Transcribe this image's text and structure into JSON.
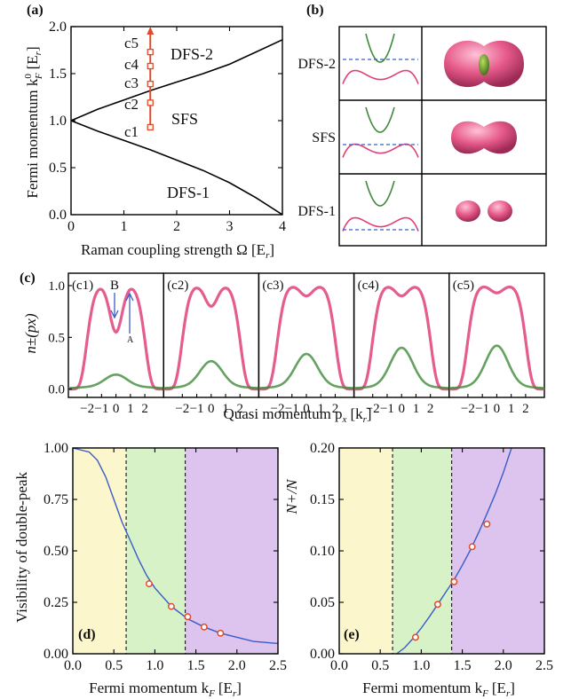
{
  "colors": {
    "magenta": "#e0407a",
    "green": "#3f8a3a",
    "red_marker": "#e04a2a",
    "fit_line": "#3b5bc8",
    "dash_blue": "#3060d0",
    "yellow_region": "#fbf6cc",
    "green_region": "#d6f2c6",
    "purple_region": "#dcc4ef",
    "arrow_blue": "#3b5bc8"
  },
  "panel_a": {
    "label": "(a)",
    "ylabel": "Fermi momentum k",
    "ylabel_super": "0",
    "ylabel_sub": "F",
    "ylabel_unit": "[E",
    "ylabel_unit_sub": "r",
    "ylabel_unit_end": "]",
    "xlabel": "Raman coupling strength Ω [E",
    "xlabel_sub": "r",
    "xlabel_end": "]",
    "region_labels": [
      "DFS-2",
      "SFS",
      "DFS-1"
    ],
    "marker_labels": [
      "c1",
      "c2",
      "c3",
      "c4",
      "c5"
    ],
    "icons": [
      "vertical-red-arrow-icon"
    ]
  },
  "panel_b": {
    "label": "(b)",
    "row_labels": [
      "DFS-2",
      "SFS",
      "DFS-1"
    ],
    "icons": [
      "band-dispersion-icon",
      "fermi-surface-blob-icon"
    ]
  },
  "panel_c": {
    "label": "(c)",
    "subpanels": [
      "(c1)",
      "(c2)",
      "(c3)",
      "(c4)",
      "(c5)"
    ],
    "ylabel": "n±(px)",
    "xlabel": "Quasi momentum p",
    "xlabel_sub": "x",
    "xlabel_unit": "[k",
    "xlabel_unit_sub": "r",
    "xlabel_end": "]",
    "annot_B": "B",
    "annot_A": "A"
  },
  "panel_d": {
    "label": "(d)",
    "ylabel": "Visibility of double-peak",
    "xlabel": "Fermi momentum k",
    "xlabel_sub": "F",
    "xlabel_unit": "[E",
    "xlabel_unit_sub": "r",
    "xlabel_end": "]"
  },
  "panel_e": {
    "label": "(e)",
    "ylabel": "N+/N",
    "xlabel": "Fermi momentum k",
    "xlabel_sub": "F",
    "xlabel_unit": "[E",
    "xlabel_unit_sub": "r",
    "xlabel_end": "]"
  },
  "chart_data": [
    {
      "id": "a",
      "type": "line",
      "xlim": [
        0,
        4
      ],
      "ylim": [
        0,
        2.0
      ],
      "xticks": [
        "0",
        "1",
        "2",
        "3",
        "4"
      ],
      "yticks": [
        "0.0",
        "0.5",
        "1.0",
        "1.5",
        "2.0"
      ],
      "upper_boundary": {
        "x": [
          0,
          0.5,
          1,
          1.5,
          2,
          2.5,
          3,
          3.5,
          4
        ],
        "y": [
          1.0,
          1.12,
          1.22,
          1.32,
          1.41,
          1.5,
          1.6,
          1.73,
          1.86
        ]
      },
      "lower_boundary": {
        "x": [
          0,
          0.5,
          1,
          1.5,
          2,
          2.5,
          3,
          3.5,
          4
        ],
        "y": [
          1.0,
          0.89,
          0.79,
          0.69,
          0.58,
          0.47,
          0.34,
          0.18,
          0.0
        ]
      },
      "markers": {
        "x": [
          1.5,
          1.5,
          1.5,
          1.5,
          1.5
        ],
        "y": [
          0.93,
          1.19,
          1.39,
          1.58,
          1.73
        ]
      },
      "arrow": {
        "x": 1.5,
        "y_start": 0.93,
        "y_end": 2.0
      }
    },
    {
      "id": "c",
      "type": "line",
      "xlim": [
        -3.3,
        3.3
      ],
      "ylim": [
        -0.08,
        1.12
      ],
      "xticks": [
        "−2",
        "−1",
        "0",
        "1",
        "2"
      ],
      "yticks": [
        "0.0",
        "0.5",
        "1.0"
      ],
      "series": [
        {
          "name": "c1",
          "magenta_peak": 1.0,
          "magenta_dip": 0.55,
          "green_peak": 0.12
        },
        {
          "name": "c2",
          "magenta_peak": 1.0,
          "magenta_dip": 0.8,
          "green_peak": 0.25
        },
        {
          "name": "c3",
          "magenta_peak": 1.0,
          "magenta_dip": 0.9,
          "green_peak": 0.32
        },
        {
          "name": "c4",
          "magenta_peak": 1.0,
          "magenta_dip": 0.9,
          "green_peak": 0.38
        },
        {
          "name": "c5",
          "magenta_peak": 1.0,
          "magenta_dip": 0.93,
          "green_peak": 0.4
        }
      ]
    },
    {
      "id": "d",
      "type": "scatter",
      "xlim": [
        0,
        2.5
      ],
      "ylim": [
        0,
        1.0
      ],
      "xticks": [
        "0.0",
        "0.5",
        "1.0",
        "1.5",
        "2.0",
        "2.5"
      ],
      "yticks": [
        "0.00",
        "0.25",
        "0.50",
        "0.75",
        "1.00"
      ],
      "points": {
        "x": [
          0.93,
          1.2,
          1.4,
          1.6,
          1.8
        ],
        "y": [
          0.34,
          0.23,
          0.18,
          0.13,
          0.1
        ]
      },
      "fit": {
        "x": [
          0.0,
          0.2,
          0.3,
          0.4,
          0.5,
          0.6,
          0.7,
          0.8,
          0.9,
          1.0,
          1.2,
          1.4,
          1.6,
          1.8,
          2.0,
          2.2,
          2.5
        ],
        "y": [
          1.0,
          0.98,
          0.94,
          0.86,
          0.75,
          0.64,
          0.55,
          0.46,
          0.38,
          0.32,
          0.23,
          0.17,
          0.13,
          0.1,
          0.08,
          0.06,
          0.05
        ]
      },
      "dashed_x": [
        0.65,
        1.37
      ],
      "regions": [
        [
          0,
          0.65
        ],
        [
          0.65,
          1.37
        ],
        [
          1.37,
          2.5
        ]
      ]
    },
    {
      "id": "e",
      "type": "scatter",
      "xlim": [
        0,
        2.5
      ],
      "ylim": [
        0,
        0.2
      ],
      "xticks": [
        "0.0",
        "0.5",
        "1.0",
        "1.5",
        "2.0",
        "2.5"
      ],
      "yticks": [
        "0.00",
        "0.05",
        "0.10",
        "0.15",
        "0.20"
      ],
      "points": {
        "x": [
          0.93,
          1.2,
          1.4,
          1.62,
          1.8
        ],
        "y": [
          0.016,
          0.048,
          0.07,
          0.104,
          0.126
        ]
      },
      "fit": {
        "x": [
          0.7,
          0.8,
          0.9,
          1.0,
          1.1,
          1.2,
          1.3,
          1.4,
          1.5,
          1.6,
          1.7,
          1.8,
          1.9,
          2.0,
          2.1
        ],
        "y": [
          0.0,
          0.006,
          0.015,
          0.025,
          0.036,
          0.048,
          0.06,
          0.072,
          0.086,
          0.101,
          0.118,
          0.136,
          0.155,
          0.176,
          0.2
        ]
      },
      "dashed_x": [
        0.65,
        1.37
      ],
      "regions": [
        [
          0,
          0.65
        ],
        [
          0.65,
          1.37
        ],
        [
          1.37,
          2.5
        ]
      ]
    }
  ]
}
